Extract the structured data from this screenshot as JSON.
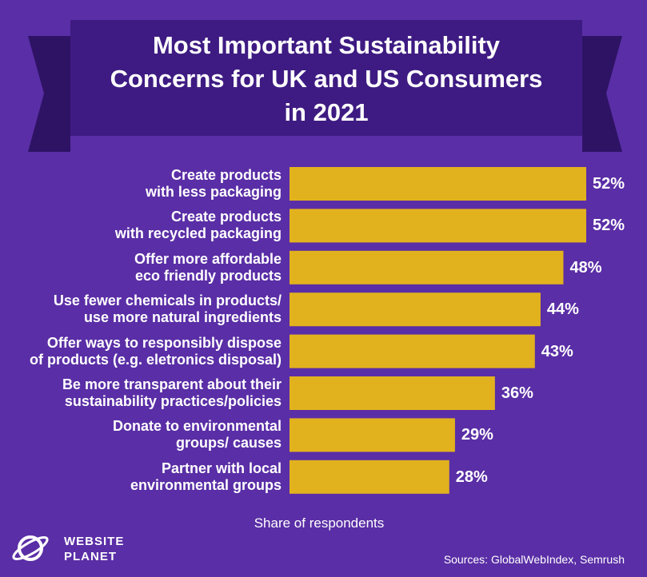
{
  "chart_data": {
    "type": "bar",
    "orientation": "horizontal",
    "title": "Most Important Sustainability\nConcerns for UK and US Consumers\nin 2021",
    "categories": [
      "Create products\nwith less packaging",
      "Create products\nwith recycled packaging",
      "Offer more affordable\neco friendly products",
      "Use fewer chemicals in products/\nuse more natural ingredients",
      "Offer ways to responsibly dispose\nof products (e.g. eletronics disposal)",
      "Be more transparent about their\nsustainability practices/policies",
      "Donate to environmental\ngroups/ causes",
      "Partner with local\nenvironmental groups"
    ],
    "values": [
      52,
      52,
      48,
      44,
      43,
      36,
      29,
      28
    ],
    "value_labels": [
      "52%",
      "52%",
      "48%",
      "44%",
      "43%",
      "36%",
      "29%",
      "28%"
    ],
    "color": "#e2b21e",
    "x_label": "Share of respondents",
    "source": "Sources: GlobalWebIndex, Semrush",
    "logo": "WEBSITE\nPLANET"
  }
}
